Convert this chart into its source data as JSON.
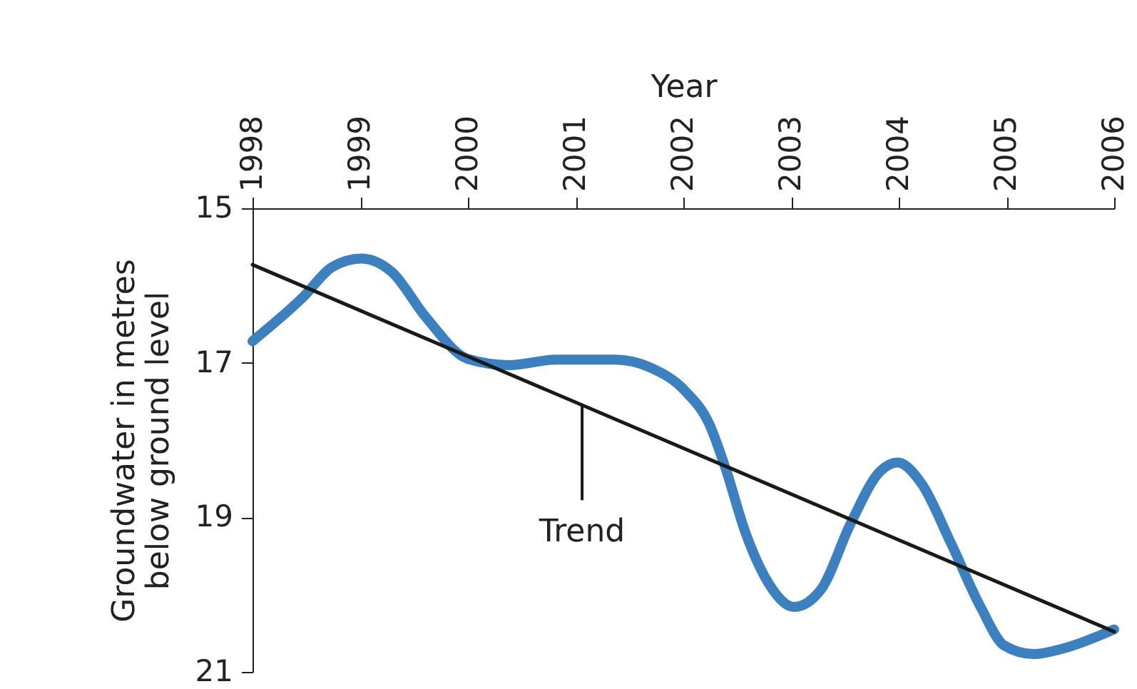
{
  "chart_data": {
    "type": "line",
    "xlabel": "Year",
    "ylabel": "Groundwater in metres below ground level",
    "xlim": [
      1998,
      2006
    ],
    "xticks": [
      1998,
      1999,
      2000,
      2001,
      2002,
      2003,
      2004,
      2005,
      2006
    ],
    "ylim": [
      21,
      15
    ],
    "yticks": [
      15,
      17,
      19,
      21
    ],
    "grid": false,
    "series": [
      {
        "color": "#3d80c0",
        "x": [
          1998,
          1998.47,
          1998.74,
          1999.01,
          1999.29,
          1999.61,
          2000.0,
          2000.38,
          2000.82,
          2001.37,
          2001.69,
          2002.02,
          2002.24,
          2002.4,
          2002.57,
          2002.79,
          2003.03,
          2003.28,
          2003.55,
          2003.83,
          2003.99,
          2004.21,
          2004.48,
          2004.76,
          2004.98,
          2005.25,
          2005.52,
          2006.0
        ],
        "values": [
          16.72,
          16.15,
          15.76,
          15.65,
          15.82,
          16.41,
          16.95,
          17.03,
          16.96,
          16.96,
          17.06,
          17.37,
          17.79,
          18.4,
          19.17,
          19.85,
          20.16,
          19.93,
          19.09,
          18.4,
          18.29,
          18.56,
          19.32,
          20.16,
          20.66,
          20.77,
          20.7,
          20.45
        ]
      },
      {
        "type": "line",
        "color": "#1a1a1a",
        "x": [
          1998,
          2006
        ],
        "values": [
          15.73,
          20.48
        ]
      }
    ],
    "annotations": [
      {
        "text": "Trend",
        "x": 2001.06,
        "y": 17.56
      }
    ]
  }
}
